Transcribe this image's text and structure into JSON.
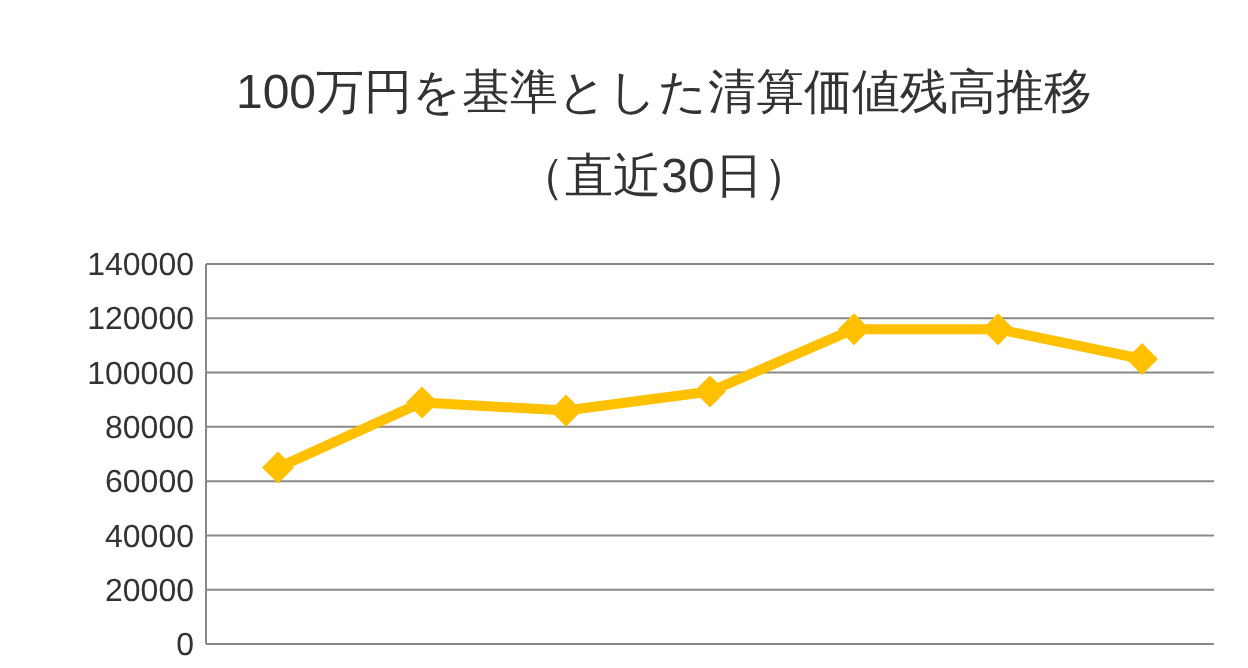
{
  "chart_data": {
    "type": "line",
    "title": "100万円を基準とした清算価値残高推移",
    "subtitle": "（直近30日）",
    "categories": [
      null,
      null,
      null,
      null,
      null,
      null,
      null
    ],
    "series": [
      {
        "color": "#ffc000",
        "values": [
          65000,
          89000,
          86000,
          93000,
          116000,
          116000,
          105000
        ]
      }
    ],
    "ylim": [
      0,
      140000
    ],
    "yticks": [
      0,
      20000,
      40000,
      60000,
      80000,
      100000,
      120000,
      140000
    ],
    "grid": "y",
    "marker": "diamond",
    "line_style": "solid"
  }
}
